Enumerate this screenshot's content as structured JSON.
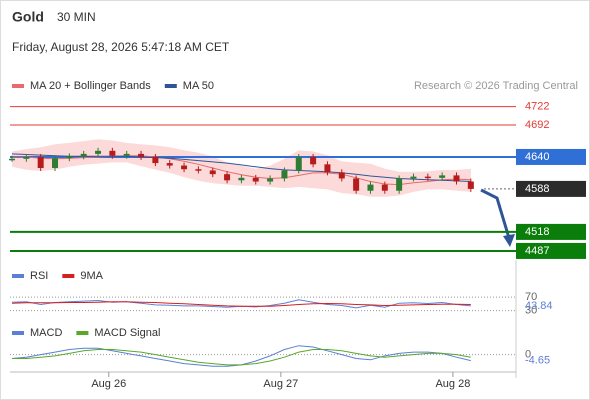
{
  "header": {
    "title": "Gold",
    "timeframe": "30 MIN",
    "date": "Friday, August 28, 2026 5:47:18 AM CET"
  },
  "credit": "Research © 2026 Trading Central",
  "chart_data": [
    {
      "type": "candlestick",
      "x": [
        0,
        4,
        8,
        12,
        16,
        20,
        24,
        28,
        32,
        36,
        40,
        44,
        48,
        52,
        56,
        60,
        64,
        68,
        72,
        76,
        80,
        84,
        88,
        92,
        96,
        100,
        104,
        108,
        112,
        116,
        120,
        124,
        128
      ],
      "close": [
        4637,
        4640,
        4622,
        4638,
        4641,
        4645,
        4650,
        4642,
        4645,
        4640,
        4630,
        4626,
        4620,
        4618,
        4612,
        4602,
        4606,
        4600,
        4605,
        4618,
        4640,
        4628,
        4615,
        4605,
        4585,
        4595,
        4585,
        4605,
        4608,
        4606,
        4610,
        4600,
        4588
      ],
      "up_color": "#2e7d32",
      "down_color": "#b71c1c",
      "series": [
        {
          "name": "MA 20 + Bollinger Bands",
          "color": "#e86a6a",
          "values": [
            4640,
            4640,
            4638,
            4637,
            4638,
            4639,
            4640,
            4641,
            4642,
            4642,
            4640,
            4637,
            4633,
            4628,
            4622,
            4616,
            4611,
            4607,
            4605,
            4606,
            4610,
            4614,
            4614,
            4612,
            4606,
            4600,
            4596,
            4595,
            4598,
            4600,
            4603,
            4604,
            4603
          ]
        },
        {
          "name": "MA 50",
          "color": "#2f5597",
          "values": [
            4645,
            4644,
            4643,
            4642,
            4641,
            4641,
            4641,
            4641,
            4641,
            4640,
            4639,
            4638,
            4636,
            4634,
            4632,
            4630,
            4627,
            4624,
            4621,
            4619,
            4618,
            4617,
            4616,
            4614,
            4612,
            4609,
            4607,
            4605,
            4604,
            4603,
            4602,
            4601,
            4600
          ]
        }
      ],
      "bands": {
        "color": "#fcdada",
        "upper": [
          4648,
          4652,
          4655,
          4660,
          4662,
          4665,
          4668,
          4666,
          4662,
          4660,
          4658,
          4655,
          4650,
          4646,
          4640,
          4630,
          4625,
          4620,
          4625,
          4636,
          4650,
          4648,
          4642,
          4632,
          4630,
          4628,
          4620,
          4615,
          4615,
          4616,
          4618,
          4618,
          4620
        ],
        "lower": [
          4625,
          4620,
          4618,
          4620,
          4625,
          4628,
          4630,
          4632,
          4632,
          4626,
          4620,
          4615,
          4608,
          4602,
          4598,
          4596,
          4594,
          4594,
          4592,
          4590,
          4592,
          4590,
          4588,
          4582,
          4580,
          4576,
          4576,
          4578,
          4584,
          4588,
          4588,
          4586,
          4584
        ]
      },
      "levels": [
        {
          "value": 4722,
          "color": "#e53935",
          "style": "text"
        },
        {
          "value": 4692,
          "color": "#e53935",
          "style": "text"
        },
        {
          "value": 4640,
          "color": "#2f6fd6",
          "style": "box"
        },
        {
          "value": 4588,
          "color": "#2b2b2b",
          "style": "box"
        },
        {
          "value": 4518,
          "color": "#0a7d0a",
          "style": "box"
        },
        {
          "value": 4487,
          "color": "#0a7d0a",
          "style": "box"
        }
      ],
      "xlim": [
        0,
        130
      ],
      "ylim": [
        4469,
        4749
      ]
    },
    {
      "type": "line",
      "series": [
        {
          "name": "RSI",
          "color": "#5b7fd6",
          "values": [
            55,
            56,
            48,
            54,
            56,
            58,
            60,
            55,
            56,
            52,
            47,
            46,
            44,
            44,
            42,
            40,
            43,
            41,
            45,
            52,
            62,
            55,
            48,
            45,
            38,
            46,
            40,
            52,
            53,
            51,
            54,
            48,
            43.84
          ]
        },
        {
          "name": "9MA",
          "color": "#d62020",
          "values": [
            52,
            53,
            53,
            53,
            54,
            54,
            55,
            56,
            56,
            55,
            54,
            52,
            50,
            48,
            46,
            44,
            43,
            43,
            43,
            45,
            48,
            50,
            51,
            50,
            48,
            47,
            45,
            46,
            47,
            48,
            49,
            49,
            48
          ]
        }
      ],
      "current": 43.84,
      "ylim": [
        14,
        91
      ],
      "yticks": [
        70,
        30
      ]
    },
    {
      "type": "line",
      "series": [
        {
          "name": "MACD",
          "color": "#5b7fd6",
          "values": [
            -3,
            -2,
            0,
            2,
            4,
            5,
            5,
            3,
            1,
            -1,
            -3,
            -5,
            -7,
            -8,
            -9,
            -9,
            -8,
            -5,
            -1,
            4,
            7,
            6,
            3,
            0,
            -3,
            -4,
            -1,
            1,
            2,
            2,
            1,
            -2,
            -4.65
          ]
        },
        {
          "name": "MACD Signal",
          "color": "#58a82a",
          "values": [
            -3,
            -3,
            -2,
            -1,
            1,
            3,
            4,
            4,
            3,
            2,
            0,
            -2,
            -4,
            -6,
            -7,
            -8,
            -8,
            -7,
            -5,
            -2,
            2,
            4,
            4,
            3,
            1,
            -1,
            -2,
            -1,
            0,
            1,
            1,
            0,
            -2
          ]
        }
      ],
      "current": -4.65,
      "ylim": [
        -12,
        13
      ],
      "yticks": [
        0
      ],
      "xticks": [
        {
          "value": 27,
          "label": "Aug 26"
        },
        {
          "value": 75,
          "label": "Aug 27"
        },
        {
          "value": 123,
          "label": "Aug 28"
        }
      ]
    }
  ]
}
